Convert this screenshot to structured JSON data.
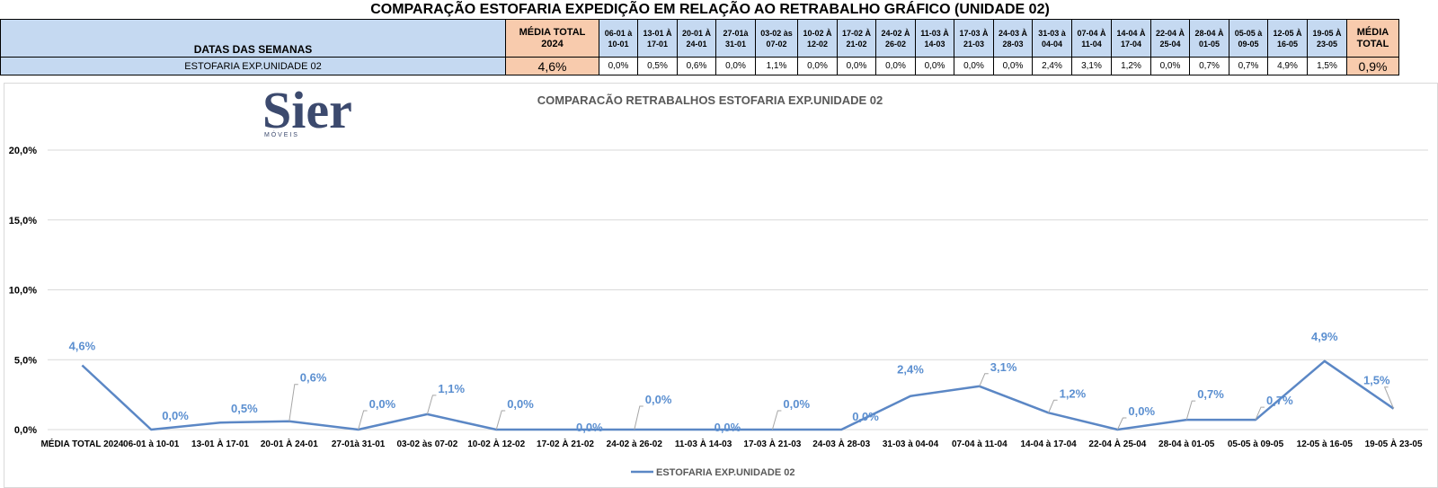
{
  "page_title": "COMPARAÇÃO ESTOFARIA EXPEDIÇÃO  EM RELAÇÃO AO RETRABALHO GRÁFICO (UNIDADE 02)",
  "table": {
    "header_label": "DATAS DAS SEMANAS",
    "row_label": "ESTOFARIA EXP.UNIDADE 02",
    "first_avg": {
      "line1": "MÉDIA TOTAL",
      "line2": "2024",
      "value": "4,6%"
    },
    "last_avg": {
      "line1": "MÉDIA",
      "line2": "TOTAL",
      "value": "0,9%"
    },
    "weeks": [
      {
        "line1": "06-01 à",
        "line2": "10-01",
        "value": "0,0%"
      },
      {
        "line1": "13-01 À",
        "line2": "17-01",
        "value": "0,5%"
      },
      {
        "line1": "20-01 À",
        "line2": "24-01",
        "value": "0,6%"
      },
      {
        "line1": "27-01à",
        "line2": "31-01",
        "value": "0,0%"
      },
      {
        "line1": "03-02 às",
        "line2": "07-02",
        "value": "1,1%"
      },
      {
        "line1": "10-02 À",
        "line2": "12-02",
        "value": "0,0%"
      },
      {
        "line1": "17-02 À",
        "line2": "21-02",
        "value": "0,0%"
      },
      {
        "line1": "24-02 À",
        "line2": "26-02",
        "value": "0,0%"
      },
      {
        "line1": "11-03 À",
        "line2": "14-03",
        "value": "0,0%"
      },
      {
        "line1": "17-03 À",
        "line2": "21-03",
        "value": "0,0%"
      },
      {
        "line1": "24-03 À",
        "line2": "28-03",
        "value": "0,0%"
      },
      {
        "line1": "31-03 à",
        "line2": "04-04",
        "value": "2,4%"
      },
      {
        "line1": "07-04 À",
        "line2": "11-04",
        "value": "3,1%"
      },
      {
        "line1": "14-04 À",
        "line2": "17-04",
        "value": "1,2%"
      },
      {
        "line1": "22-04 À",
        "line2": "25-04",
        "value": "0,0%"
      },
      {
        "line1": "28-04 À",
        "line2": "01-05",
        "value": "0,7%"
      },
      {
        "line1": "05-05 à",
        "line2": "09-05",
        "value": "0,7%"
      },
      {
        "line1": "12-05 À",
        "line2": "16-05",
        "value": "4,9%"
      },
      {
        "line1": "19-05 À",
        "line2": "23-05",
        "value": "1,5%"
      }
    ]
  },
  "logo": {
    "text": "Sier",
    "subtext": "M Ó V E I S"
  },
  "chart_data": {
    "type": "line",
    "title": "COMPARACÃO RETRABALHOS  ESTOFARIA EXP.UNIDADE 02",
    "xlabel": "",
    "ylabel": "",
    "ylim": [
      0,
      20
    ],
    "yticks": [
      "0,0%",
      "5,0%",
      "10,0%",
      "15,0%",
      "20,0%"
    ],
    "grid": true,
    "legend_position": "bottom",
    "line_color": "#5b87c5",
    "label_color": "#5b8fd0",
    "categories": [
      "MÉDIA TOTAL 2024",
      "06-01 à 10-01",
      "13-01 À 17-01",
      "20-01 À 24-01",
      "27-01à 31-01",
      "03-02 às 07-02",
      "10-02 À 12-02",
      "17-02 À 21-02",
      "24-02 à 26-02",
      "11-03 À 14-03",
      "17-03 À 21-03",
      "24-03 À 28-03",
      "31-03 à 04-04",
      "07-04 à 11-04",
      "14-04 à 17-04",
      "22-04 À 25-04",
      "28-04 à 01-05",
      "05-05 à 09-05",
      "12-05 à 16-05",
      "19-05 À 23-05"
    ],
    "series": [
      {
        "name": "ESTOFARIA EXP.UNIDADE 02",
        "values": [
          4.6,
          0.0,
          0.5,
          0.6,
          0.0,
          1.1,
          0.0,
          0.0,
          0.0,
          0.0,
          0.0,
          0.0,
          2.4,
          3.1,
          1.2,
          0.0,
          0.7,
          0.7,
          4.9,
          1.5
        ],
        "labels": [
          "4,6%",
          "0,0%",
          "0,5%",
          "0,6%",
          "0,0%",
          "1,1%",
          "0,0%",
          "0,0%",
          "0,0%",
          "0,0%",
          "0,0%",
          "0,0%",
          "2,4%",
          "3,1%",
          "1,2%",
          "0,0%",
          "0,7%",
          "0,7%",
          "4,9%",
          "1,5%"
        ]
      }
    ]
  }
}
